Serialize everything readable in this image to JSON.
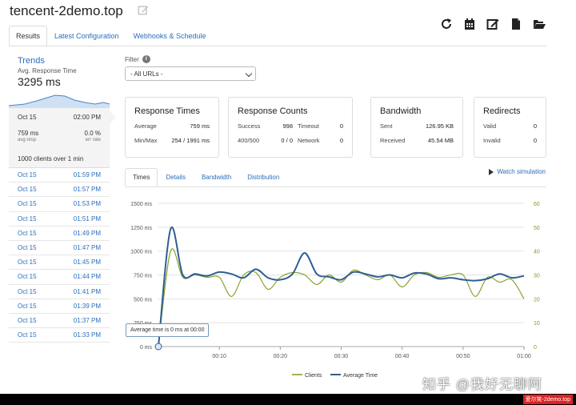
{
  "app": {
    "title": "tencent-2demo.top"
  },
  "tabs": [
    "Results",
    "Latest Configuration",
    "Webhooks & Schedule"
  ],
  "sidebar": {
    "trends_title": "Trends",
    "trends_sub": "Avg. Response Time",
    "trends_value": "3295 ms",
    "current": {
      "date": "Oct 15",
      "time": "02:00 PM",
      "avg_resp": "759 ms",
      "avg_resp_label": "avg resp",
      "err_rate": "0.0 %",
      "err_rate_label": "err rate",
      "clients": "1000 clients over 1 min"
    },
    "history": [
      {
        "date": "Oct 15",
        "time": "01:59 PM"
      },
      {
        "date": "Oct 15",
        "time": "01:57 PM"
      },
      {
        "date": "Oct 15",
        "time": "01:53 PM"
      },
      {
        "date": "Oct 15",
        "time": "01:51 PM"
      },
      {
        "date": "Oct 15",
        "time": "01:49 PM"
      },
      {
        "date": "Oct 15",
        "time": "01:47 PM"
      },
      {
        "date": "Oct 15",
        "time": "01:45 PM"
      },
      {
        "date": "Oct 15",
        "time": "01:44 PM"
      },
      {
        "date": "Oct 15",
        "time": "01:41 PM"
      },
      {
        "date": "Oct 15",
        "time": "01:39 PM"
      },
      {
        "date": "Oct 15",
        "time": "01:37 PM"
      },
      {
        "date": "Oct 15",
        "time": "01:33 PM"
      }
    ]
  },
  "filter": {
    "label": "Filter",
    "info": "i",
    "selected": "- All URLs -"
  },
  "cards": {
    "response_times": {
      "title": "Response Times",
      "average_label": "Average",
      "average": "759 ms",
      "minmax_label": "Min/Max",
      "minmax": "254 / 1991 ms"
    },
    "response_counts": {
      "title": "Response Counts",
      "success_label": "Success",
      "success": "998",
      "timeout_label": "Timeout",
      "timeout": "0",
      "s400_label": "400/500",
      "s400": "0 / 0",
      "network_label": "Network",
      "network": "0"
    },
    "bandwidth": {
      "title": "Bandwidth",
      "sent_label": "Sent",
      "sent": "126.95 KB",
      "received_label": "Received",
      "received": "45.54 MB"
    },
    "redirects": {
      "title": "Redirects",
      "valid_label": "Valid",
      "valid": "0",
      "invalid_label": "Invalid",
      "invalid": "0"
    }
  },
  "chart_tabs": [
    "Times",
    "Details",
    "Bandwidth",
    "Distribution"
  ],
  "watch_label": "Watch simulation",
  "tooltip": "Average time is 0 ms at 00:00",
  "watermark": "知乎 @我好无聊阿",
  "bottom_badge": "爱尔笑-2demo.top",
  "colors": {
    "clients": "#7f9c1f",
    "average_time": "#2e5f93",
    "link": "#2a6ebb"
  },
  "chart_data": {
    "type": "line",
    "x": [
      "00:00",
      "00:02",
      "00:04",
      "00:06",
      "00:08",
      "00:10",
      "00:12",
      "00:14",
      "00:16",
      "00:18",
      "00:20",
      "00:22",
      "00:24",
      "00:26",
      "00:28",
      "00:30",
      "00:32",
      "00:34",
      "00:36",
      "00:38",
      "00:40",
      "00:42",
      "00:44",
      "00:46",
      "00:48",
      "00:50",
      "00:52",
      "00:54",
      "00:56",
      "00:58",
      "01:00"
    ],
    "xticks": [
      "00:10",
      "00:20",
      "00:30",
      "00:40",
      "00:50",
      "01:00"
    ],
    "y_left_ticks": [
      "0 ms",
      "250 ms",
      "500 ms",
      "750 ms",
      "1000 ms",
      "1250 ms",
      "1500 ms"
    ],
    "y_right_ticks": [
      "0",
      "10",
      "20",
      "30",
      "40",
      "50",
      "60"
    ],
    "ylim_left": [
      0,
      1500
    ],
    "ylim_right": [
      0,
      60
    ],
    "grid": true,
    "legend": "bottom",
    "series": [
      {
        "name": "Clients",
        "axis": "right",
        "values": [
          0,
          40,
          29,
          30,
          29,
          29,
          21,
          30,
          31,
          24,
          29,
          31,
          30,
          26,
          30,
          27,
          32,
          30,
          28,
          30,
          25,
          30,
          31,
          29,
          30,
          30,
          21,
          29,
          27,
          28,
          20
        ]
      },
      {
        "name": "Average Time",
        "axis": "left",
        "values": [
          0,
          1230,
          750,
          760,
          740,
          780,
          760,
          720,
          810,
          720,
          700,
          760,
          980,
          760,
          730,
          700,
          780,
          760,
          730,
          750,
          720,
          770,
          760,
          710,
          720,
          700,
          690,
          710,
          760,
          720,
          740
        ]
      }
    ]
  }
}
